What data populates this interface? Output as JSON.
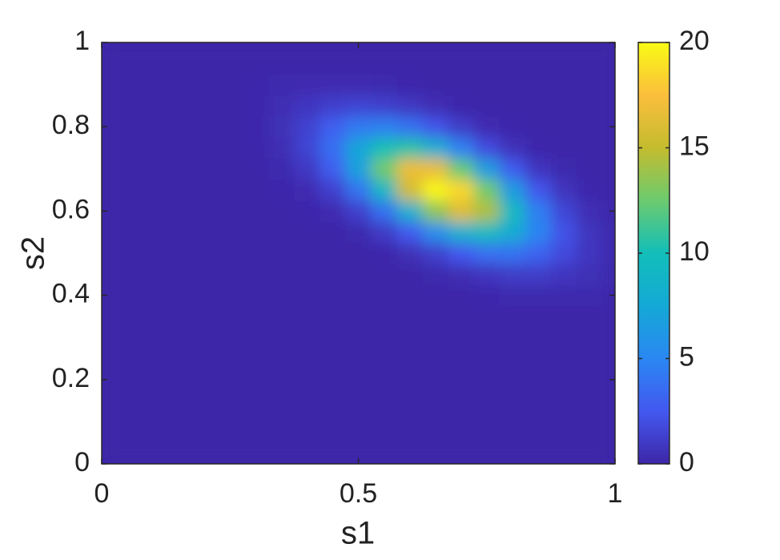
{
  "chart_data": {
    "type": "heatmap",
    "xlabel": "s1",
    "ylabel": "s2",
    "x": [
      0,
      0.05,
      0.1,
      0.15,
      0.2,
      0.25,
      0.3,
      0.35,
      0.4,
      0.45,
      0.5,
      0.55,
      0.6,
      0.65,
      0.7,
      0.75,
      0.8,
      0.85,
      0.9,
      0.95,
      1
    ],
    "y": [
      0,
      0.05,
      0.1,
      0.15,
      0.2,
      0.25,
      0.3,
      0.35,
      0.4,
      0.45,
      0.5,
      0.55,
      0.6,
      0.65,
      0.7,
      0.75,
      0.8,
      0.85,
      0.9,
      0.95,
      1
    ],
    "values": [
      [
        0,
        0,
        0,
        0,
        0,
        0,
        0,
        0,
        0,
        0,
        0,
        0,
        0,
        0,
        0,
        0,
        0,
        0,
        0,
        0,
        0
      ],
      [
        0,
        0,
        0,
        0,
        0,
        0,
        0,
        0,
        0,
        0,
        0,
        0,
        0,
        0,
        0,
        0,
        0,
        0,
        0,
        0,
        0
      ],
      [
        0,
        0,
        0,
        0,
        0,
        0,
        0,
        0,
        0,
        0,
        0,
        0,
        0,
        0,
        0,
        0,
        0,
        0,
        0,
        0,
        0
      ],
      [
        0,
        0,
        0,
        0,
        0,
        0,
        0,
        0,
        0,
        0,
        0,
        0,
        0,
        0,
        0,
        0,
        0,
        0,
        0,
        0,
        0
      ],
      [
        0,
        0,
        0,
        0,
        0,
        0,
        0,
        0,
        0,
        0,
        0,
        0,
        0,
        0,
        0,
        0,
        0,
        0,
        0,
        0,
        0
      ],
      [
        0,
        0,
        0,
        0,
        0,
        0,
        0,
        0,
        0,
        0,
        0,
        0,
        0,
        0,
        0,
        0,
        0,
        0,
        0,
        0,
        0
      ],
      [
        0,
        0,
        0,
        0,
        0,
        0,
        0,
        0,
        0,
        0,
        0,
        0,
        0,
        0,
        0,
        0,
        0,
        0,
        0,
        0,
        0
      ],
      [
        0,
        0,
        0,
        0,
        0,
        0,
        0,
        0,
        0,
        0,
        0,
        0,
        0,
        0,
        0,
        0,
        0,
        0,
        0,
        0,
        0
      ],
      [
        0,
        0,
        0,
        0,
        0,
        0,
        0,
        0,
        0,
        0,
        0,
        0,
        0,
        0,
        0,
        0.1,
        0.2,
        0.2,
        0.2,
        0.2,
        0.1
      ],
      [
        0,
        0,
        0,
        0,
        0,
        0,
        0,
        0,
        0,
        0,
        0,
        0,
        0,
        0.2,
        0.4,
        0.8,
        1.1,
        1.1,
        0.8,
        0.5,
        0.2
      ],
      [
        0,
        0,
        0,
        0,
        0,
        0,
        0,
        0,
        0,
        0,
        0,
        0.1,
        0.5,
        1.3,
        2.5,
        3.7,
        3.9,
        3.1,
        1.8,
        0.8,
        0.2
      ],
      [
        0,
        0,
        0,
        0,
        0,
        0,
        0,
        0,
        0,
        0,
        0.2,
        1.0,
        2.6,
        5.5,
        8.3,
        9.4,
        7.9,
        4.9,
        2.2,
        0.7,
        0.2
      ],
      [
        0,
        0,
        0,
        0,
        0,
        0,
        0,
        0,
        0.1,
        0.3,
        1.3,
        3.8,
        8.3,
        13.5,
        16.2,
        14.4,
        9.4,
        4.6,
        1.6,
        0.4,
        0.1
      ],
      [
        0,
        0,
        0,
        0,
        0,
        0,
        0,
        0.1,
        0.3,
        1.3,
        4.0,
        9.2,
        15.6,
        19.8,
        18.5,
        12.7,
        6.5,
        2.4,
        0.7,
        0.1,
        0
      ],
      [
        0,
        0,
        0,
        0,
        0,
        0,
        0,
        0.2,
        0.9,
        2.8,
        6.9,
        12.6,
        16.9,
        16.7,
        12.3,
        6.6,
        2.7,
        0.8,
        0.2,
        0,
        0
      ],
      [
        0,
        0,
        0,
        0,
        0,
        0,
        0.1,
        0.4,
        1.5,
        3.8,
        7.2,
        10.1,
        10.6,
        8.1,
        4.7,
        1.9,
        0.6,
        0.1,
        0,
        0,
        0
      ],
      [
        0,
        0,
        0,
        0,
        0,
        0,
        0.1,
        0.5,
        1.4,
        2.9,
        4.3,
        4.7,
        3.9,
        2.3,
        1.1,
        0.3,
        0.1,
        0,
        0,
        0,
        0
      ],
      [
        0,
        0,
        0,
        0,
        0,
        0,
        0.1,
        0.4,
        0.8,
        1.3,
        1.5,
        1.3,
        0.9,
        0.4,
        0.1,
        0,
        0,
        0,
        0,
        0,
        0
      ],
      [
        0,
        0,
        0,
        0,
        0,
        0,
        0.1,
        0.2,
        0.3,
        0.3,
        0.3,
        0.2,
        0.1,
        0,
        0,
        0,
        0,
        0,
        0,
        0,
        0
      ],
      [
        0,
        0,
        0,
        0,
        0,
        0,
        0,
        0,
        0,
        0,
        0,
        0,
        0,
        0,
        0,
        0,
        0,
        0,
        0,
        0,
        0
      ],
      [
        0,
        0,
        0,
        0,
        0,
        0,
        0,
        0,
        0,
        0,
        0,
        0,
        0,
        0,
        0,
        0,
        0,
        0,
        0,
        0,
        0
      ]
    ],
    "xlim": [
      0,
      1
    ],
    "ylim": [
      0,
      1
    ],
    "xticks": [
      0,
      0.5,
      1
    ],
    "yticks": [
      0,
      0.2,
      0.4,
      0.6,
      0.8,
      1
    ],
    "clim": [
      0,
      20
    ],
    "cticks": [
      0,
      5,
      10,
      15,
      20
    ],
    "colormap": [
      "#3E26A8",
      "#4358F0",
      "#2A87F2",
      "#14A9D6",
      "#12BEB9",
      "#6CCB6F",
      "#C4BC2E",
      "#FBBE3C",
      "#F9FB15"
    ]
  }
}
